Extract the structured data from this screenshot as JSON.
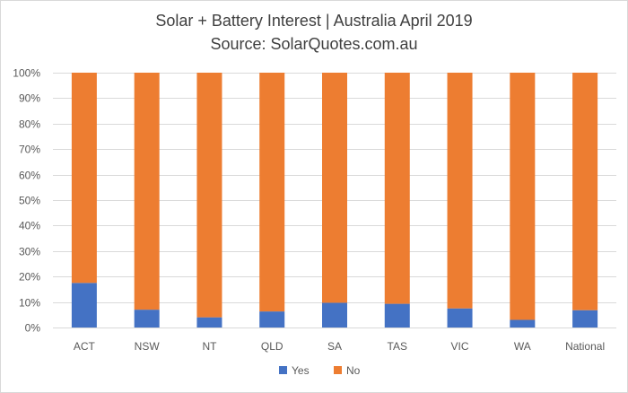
{
  "chart": {
    "title": "Solar + Battery Interest | Australia April 2019",
    "subtitle": "Source: SolarQuotes.com.au"
  },
  "chart_data": {
    "type": "bar",
    "stacked": true,
    "categories": [
      "ACT",
      "NSW",
      "NT",
      "QLD",
      "SA",
      "TAS",
      "VIC",
      "WA",
      "National"
    ],
    "series": [
      {
        "name": "Yes",
        "color": "#4472c4",
        "values": [
          17.5,
          7,
          4,
          6.3,
          9.7,
          9.3,
          7.5,
          3,
          6.8
        ]
      },
      {
        "name": "No",
        "color": "#ed7d31",
        "values": [
          82.5,
          93,
          96,
          93.7,
          90.3,
          90.7,
          92.5,
          97,
          93.2
        ]
      }
    ],
    "title": "Solar + Battery Interest | Australia April 2019",
    "subtitle": "Source: SolarQuotes.com.au",
    "xlabel": "",
    "ylabel": "",
    "ylim": [
      0,
      100
    ],
    "yticks": [
      "0%",
      "10%",
      "20%",
      "30%",
      "40%",
      "50%",
      "60%",
      "70%",
      "80%",
      "90%",
      "100%"
    ],
    "grid": true,
    "legend": {
      "position": "bottom",
      "entries": [
        "Yes",
        "No"
      ]
    }
  }
}
